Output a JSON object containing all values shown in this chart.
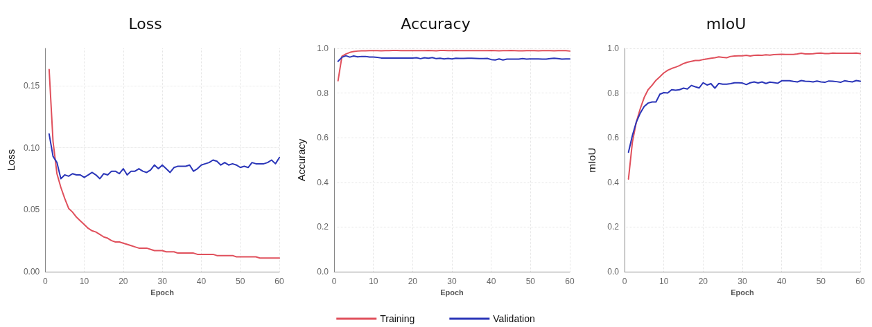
{
  "chart_data": [
    {
      "type": "line",
      "title": "Loss",
      "xlabel": "Epoch",
      "ylabel": "Loss",
      "x": [
        1,
        2,
        3,
        4,
        5,
        6,
        7,
        8,
        9,
        10,
        11,
        12,
        13,
        14,
        15,
        16,
        17,
        18,
        19,
        20,
        21,
        22,
        23,
        24,
        25,
        26,
        27,
        28,
        29,
        30,
        31,
        32,
        33,
        34,
        35,
        36,
        37,
        38,
        39,
        40,
        41,
        42,
        43,
        44,
        45,
        46,
        47,
        48,
        49,
        50,
        51,
        52,
        53,
        54,
        55,
        56,
        57,
        58,
        59,
        60
      ],
      "xlim": [
        0,
        60
      ],
      "xticks": [
        0,
        10,
        20,
        30,
        40,
        50,
        60
      ],
      "ylim": [
        0,
        0.18
      ],
      "yticks": [
        {
          "value": 0,
          "label": "0.00"
        },
        0.05,
        {
          "value": 0.1,
          "label": "0.10"
        },
        0.15
      ],
      "grid": true,
      "legend": false,
      "marker": "none",
      "line_style": "solid",
      "series": [
        {
          "color": "#e0505c",
          "values": [
            0.163,
            0.105,
            0.079,
            0.068,
            0.059,
            0.051,
            0.048,
            0.044,
            0.041,
            0.038,
            0.035,
            0.033,
            0.032,
            0.03,
            0.028,
            0.027,
            0.025,
            0.024,
            0.024,
            0.023,
            0.022,
            0.021,
            0.02,
            0.019,
            0.019,
            0.019,
            0.018,
            0.017,
            0.017,
            0.017,
            0.016,
            0.016,
            0.016,
            0.015,
            0.015,
            0.015,
            0.015,
            0.015,
            0.014,
            0.014,
            0.014,
            0.014,
            0.014,
            0.013,
            0.013,
            0.013,
            0.013,
            0.013,
            0.012,
            0.012,
            0.012,
            0.012,
            0.012,
            0.012,
            0.011,
            0.011,
            0.011,
            0.011,
            0.011,
            0.011
          ]
        },
        {
          "color": "#2a35b8",
          "values": [
            0.111,
            0.093,
            0.088,
            0.075,
            0.078,
            0.077,
            0.079,
            0.078,
            0.078,
            0.076,
            0.078,
            0.08,
            0.078,
            0.075,
            0.079,
            0.078,
            0.081,
            0.081,
            0.079,
            0.083,
            0.078,
            0.081,
            0.081,
            0.083,
            0.081,
            0.08,
            0.082,
            0.086,
            0.083,
            0.086,
            0.083,
            0.08,
            0.084,
            0.085,
            0.085,
            0.085,
            0.086,
            0.081,
            0.083,
            0.086,
            0.087,
            0.088,
            0.09,
            0.089,
            0.086,
            0.088,
            0.086,
            0.087,
            0.086,
            0.084,
            0.085,
            0.084,
            0.088,
            0.087,
            0.087,
            0.087,
            0.088,
            0.09,
            0.087,
            0.092
          ]
        }
      ]
    },
    {
      "type": "line",
      "title": "Accuracy",
      "xlabel": "Epoch",
      "ylabel": "Accuracy",
      "x": [
        1,
        2,
        3,
        4,
        5,
        6,
        7,
        8,
        9,
        10,
        11,
        12,
        13,
        14,
        15,
        16,
        17,
        18,
        19,
        20,
        21,
        22,
        23,
        24,
        25,
        26,
        27,
        28,
        29,
        30,
        31,
        32,
        33,
        34,
        35,
        36,
        37,
        38,
        39,
        40,
        41,
        42,
        43,
        44,
        45,
        46,
        47,
        48,
        49,
        50,
        51,
        52,
        53,
        54,
        55,
        56,
        57,
        58,
        59,
        60
      ],
      "xlim": [
        0,
        60
      ],
      "xticks": [
        0,
        10,
        20,
        30,
        40,
        50,
        60
      ],
      "ylim": [
        0,
        1
      ],
      "yticks": [
        {
          "value": 0,
          "label": "0.0"
        },
        0.2,
        0.4,
        0.6,
        0.8,
        {
          "value": 1,
          "label": "1.0"
        }
      ],
      "grid": true,
      "legend": "bottom",
      "marker": "none",
      "line_style": "solid",
      "series": [
        {
          "name": "Training",
          "color": "#e0505c",
          "values": [
            0.855,
            0.965,
            0.975,
            0.982,
            0.986,
            0.988,
            0.989,
            0.989,
            0.99,
            0.99,
            0.99,
            0.989,
            0.99,
            0.99,
            0.991,
            0.991,
            0.99,
            0.99,
            0.99,
            0.99,
            0.99,
            0.99,
            0.99,
            0.991,
            0.99,
            0.989,
            0.991,
            0.991,
            0.99,
            0.99,
            0.991,
            0.99,
            0.99,
            0.99,
            0.99,
            0.99,
            0.99,
            0.99,
            0.99,
            0.991,
            0.99,
            0.989,
            0.99,
            0.99,
            0.991,
            0.99,
            0.989,
            0.989,
            0.99,
            0.99,
            0.99,
            0.989,
            0.99,
            0.99,
            0.99,
            0.989,
            0.99,
            0.99,
            0.99,
            0.988
          ]
        },
        {
          "name": "Validation",
          "color": "#2a35b8",
          "values": [
            0.942,
            0.96,
            0.967,
            0.961,
            0.966,
            0.962,
            0.964,
            0.964,
            0.961,
            0.961,
            0.96,
            0.957,
            0.957,
            0.957,
            0.957,
            0.957,
            0.957,
            0.957,
            0.957,
            0.957,
            0.958,
            0.954,
            0.958,
            0.956,
            0.959,
            0.954,
            0.956,
            0.953,
            0.955,
            0.953,
            0.956,
            0.955,
            0.955,
            0.956,
            0.956,
            0.955,
            0.954,
            0.954,
            0.955,
            0.95,
            0.948,
            0.953,
            0.948,
            0.952,
            0.952,
            0.952,
            0.952,
            0.954,
            0.952,
            0.953,
            0.953,
            0.953,
            0.952,
            0.952,
            0.954,
            0.956,
            0.954,
            0.952,
            0.953,
            0.953
          ]
        }
      ]
    },
    {
      "type": "line",
      "title": "mIoU",
      "xlabel": "Epoch",
      "ylabel": "mIoU",
      "x": [
        1,
        2,
        3,
        4,
        5,
        6,
        7,
        8,
        9,
        10,
        11,
        12,
        13,
        14,
        15,
        16,
        17,
        18,
        19,
        20,
        21,
        22,
        23,
        24,
        25,
        26,
        27,
        28,
        29,
        30,
        31,
        32,
        33,
        34,
        35,
        36,
        37,
        38,
        39,
        40,
        41,
        42,
        43,
        44,
        45,
        46,
        47,
        48,
        49,
        50,
        51,
        52,
        53,
        54,
        55,
        56,
        57,
        58,
        59,
        60
      ],
      "xlim": [
        0,
        60
      ],
      "xticks": [
        0,
        10,
        20,
        30,
        40,
        50,
        60
      ],
      "ylim": [
        0,
        1
      ],
      "yticks": [
        {
          "value": 0,
          "label": "0.0"
        },
        0.2,
        0.4,
        0.6,
        0.8,
        {
          "value": 1,
          "label": "1.0"
        }
      ],
      "grid": true,
      "legend": false,
      "marker": "none",
      "line_style": "solid",
      "series": [
        {
          "color": "#e0505c",
          "values": [
            0.415,
            0.58,
            0.67,
            0.73,
            0.78,
            0.815,
            0.835,
            0.857,
            0.873,
            0.89,
            0.902,
            0.91,
            0.916,
            0.923,
            0.932,
            0.938,
            0.942,
            0.946,
            0.946,
            0.95,
            0.953,
            0.956,
            0.958,
            0.962,
            0.96,
            0.958,
            0.964,
            0.966,
            0.967,
            0.967,
            0.969,
            0.966,
            0.969,
            0.97,
            0.969,
            0.971,
            0.97,
            0.972,
            0.973,
            0.974,
            0.973,
            0.973,
            0.973,
            0.975,
            0.978,
            0.975,
            0.975,
            0.976,
            0.978,
            0.979,
            0.977,
            0.977,
            0.979,
            0.978,
            0.978,
            0.978,
            0.978,
            0.978,
            0.979,
            0.977
          ]
        },
        {
          "color": "#2a35b8",
          "values": [
            0.535,
            0.61,
            0.67,
            0.71,
            0.74,
            0.755,
            0.76,
            0.76,
            0.795,
            0.802,
            0.8,
            0.815,
            0.813,
            0.815,
            0.822,
            0.818,
            0.834,
            0.828,
            0.823,
            0.846,
            0.836,
            0.842,
            0.822,
            0.843,
            0.84,
            0.84,
            0.842,
            0.846,
            0.846,
            0.845,
            0.838,
            0.846,
            0.85,
            0.845,
            0.85,
            0.843,
            0.849,
            0.847,
            0.844,
            0.855,
            0.855,
            0.855,
            0.852,
            0.85,
            0.856,
            0.853,
            0.852,
            0.85,
            0.854,
            0.85,
            0.848,
            0.854,
            0.853,
            0.851,
            0.848,
            0.855,
            0.852,
            0.85,
            0.856,
            0.853
          ]
        }
      ]
    }
  ]
}
